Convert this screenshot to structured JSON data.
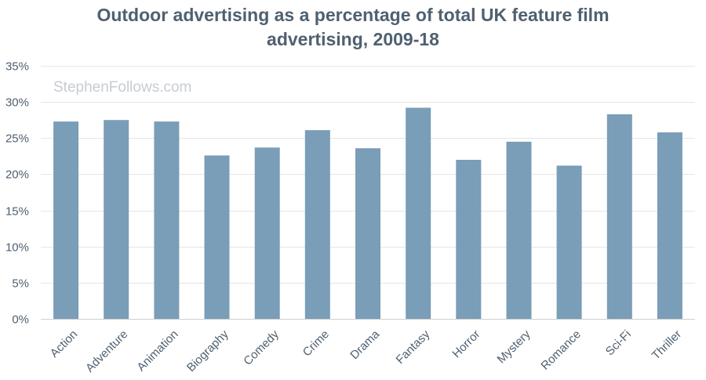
{
  "chart_data": {
    "type": "bar",
    "title_lines": [
      "Outdoor advertising as a percentage of total UK feature film",
      "advertising, 2009-18"
    ],
    "watermark": "StephenFollows.com",
    "categories": [
      "Action",
      "Adventure",
      "Animation",
      "Biography",
      "Comedy",
      "Crime",
      "Drama",
      "Fantasy",
      "Horror",
      "Mystery",
      "Romance",
      "Sci-Fi",
      "Thriller"
    ],
    "values": [
      27.3,
      27.5,
      27.3,
      22.6,
      23.7,
      26.1,
      23.6,
      29.2,
      22.0,
      24.5,
      21.2,
      28.3,
      25.8
    ],
    "y_ticks": [
      "0%",
      "5%",
      "10%",
      "15%",
      "20%",
      "25%",
      "30%",
      "35%"
    ],
    "y_tick_values": [
      0,
      5,
      10,
      15,
      20,
      25,
      30,
      35
    ],
    "ylim": [
      0,
      35
    ],
    "xlabel": "",
    "ylabel": "",
    "grid": true,
    "legend": "none",
    "bar_color": "#7a9db8",
    "text_color": "#4f6070",
    "grid_color": "#e6e6e6"
  }
}
